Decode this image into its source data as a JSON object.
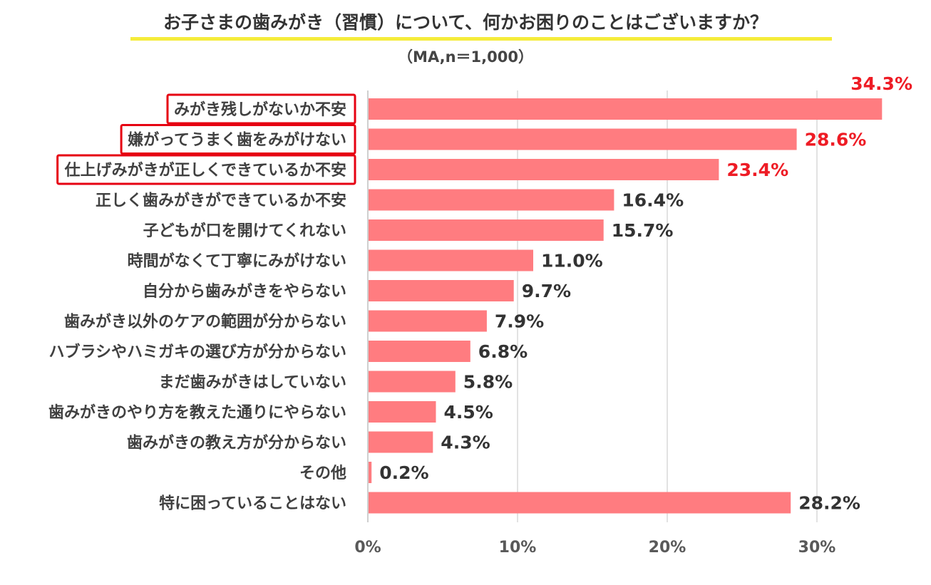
{
  "chart_data": {
    "type": "bar",
    "orientation": "horizontal",
    "title": "お子さまの歯みがき（習慣）について、何かお困りのことはございますか？",
    "subtitle": "（MA,n＝1,000）",
    "categories": [
      "みがき残しがないか不安",
      "嫌がってうまく歯をみがけない",
      "仕上げみがきが正しくできているか不安",
      "正しく歯みがきができているか不安",
      "子どもが口を開けてくれない",
      "時間がなくて丁寧にみがけない",
      "自分から歯みがきをやらない",
      "歯みがき以外のケアの範囲が分からない",
      "ハブラシやハミガキの選び方が分からない",
      "まだ歯みがきはしていない",
      "歯みがきのやり方を教えた通りにやらない",
      "歯みがきの教え方が分からない",
      "その他",
      "特に困っていることはない"
    ],
    "values": [
      34.3,
      28.6,
      23.4,
      16.4,
      15.7,
      11.0,
      9.7,
      7.9,
      6.8,
      5.8,
      4.5,
      4.3,
      0.2,
      28.2
    ],
    "value_labels": [
      "34.3%",
      "28.6%",
      "23.4%",
      "16.4%",
      "15.7%",
      "11.0%",
      "9.7%",
      "7.9%",
      "6.8%",
      "5.8%",
      "4.5%",
      "4.3%",
      "0.2%",
      "28.2%"
    ],
    "highlighted": [
      true,
      true,
      true,
      false,
      false,
      false,
      false,
      false,
      false,
      false,
      false,
      false,
      false,
      false
    ],
    "xlim": [
      0,
      35
    ],
    "xticks": [
      0,
      10,
      20,
      30
    ],
    "xtick_labels": [
      "0%",
      "10%",
      "20%",
      "30%"
    ],
    "grid": true,
    "legend": "none",
    "colors": {
      "bar": "#ff7c80",
      "highlight_label": "#ee1c25",
      "normal_label": "#333333",
      "highlight_box": "#e60012",
      "grid": "#d9d9d9",
      "title_underline": "#f5ec3a"
    }
  }
}
